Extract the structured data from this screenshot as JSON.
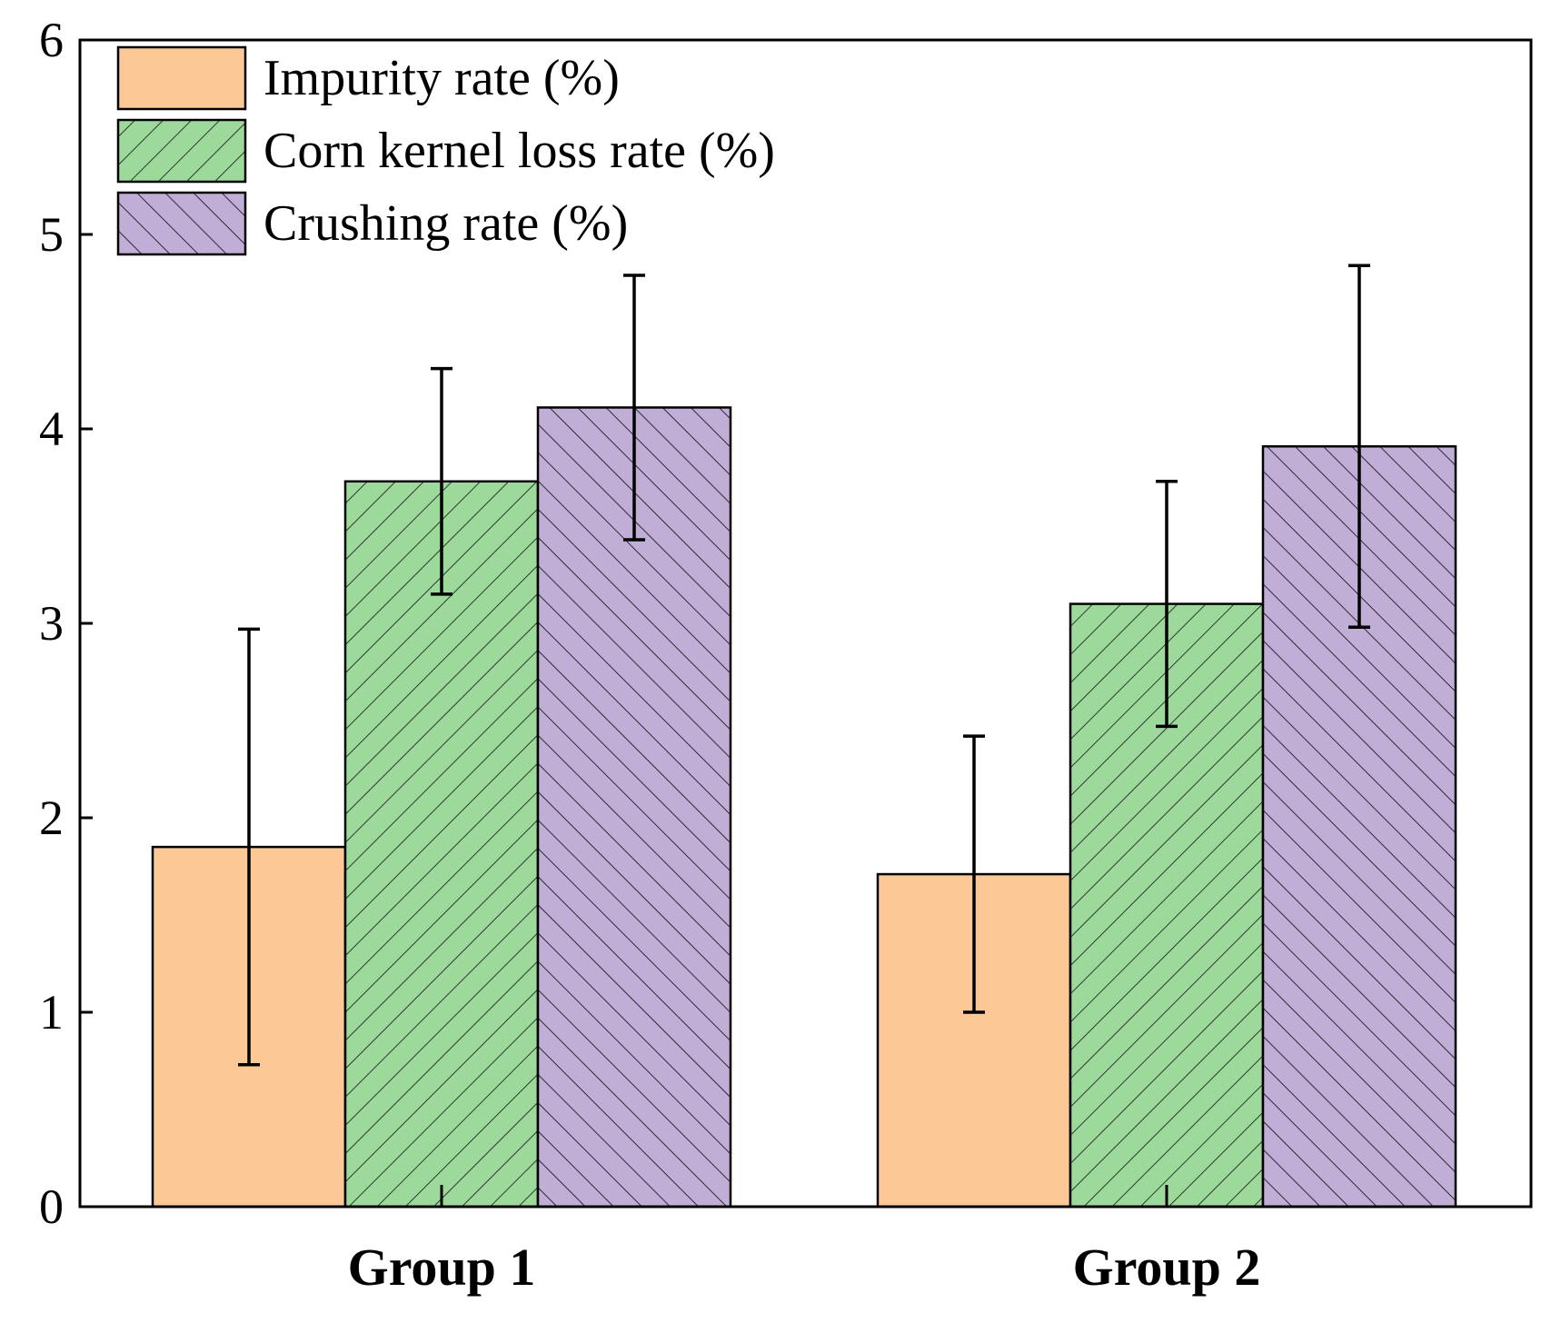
{
  "chart_data": {
    "type": "bar",
    "title": "",
    "xlabel": "",
    "ylabel": "",
    "ylim": [
      0,
      6
    ],
    "yticks": [
      "0",
      "1",
      "2",
      "3",
      "4",
      "5",
      "6"
    ],
    "categories": [
      "Group 1",
      "Group 2"
    ],
    "grid": false,
    "legend_position": "top-left",
    "error_bars": true,
    "series": [
      {
        "name": "Impurity rate (%)",
        "values": [
          1.85,
          1.71
        ],
        "errors": [
          1.12,
          0.71
        ],
        "color": "#fbc896",
        "pattern": "solid"
      },
      {
        "name": "Corn kernel loss rate (%)",
        "values": [
          3.73,
          3.1
        ],
        "errors": [
          0.58,
          0.63
        ],
        "color": "#9ed99c",
        "pattern": "forward-hatch"
      },
      {
        "name": "Crushing rate (%)",
        "values": [
          4.11,
          3.91
        ],
        "errors": [
          0.68,
          0.93
        ],
        "color": "#c0aed6",
        "pattern": "back-hatch"
      }
    ]
  }
}
